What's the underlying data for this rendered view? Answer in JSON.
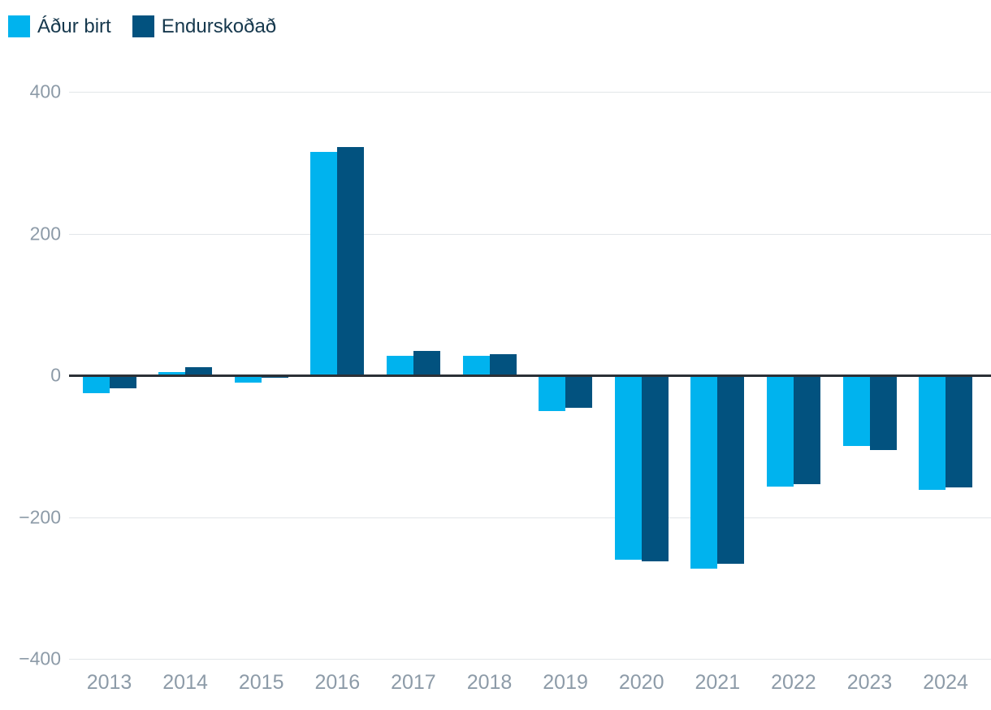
{
  "legend": {
    "items": [
      {
        "label": "Áður birt",
        "color": "#00b3ee"
      },
      {
        "label": "Endurskoðað",
        "color": "#02527f"
      }
    ]
  },
  "chart_data": {
    "type": "bar",
    "title": "",
    "categories": [
      "2013",
      "2014",
      "2015",
      "2016",
      "2017",
      "2018",
      "2019",
      "2020",
      "2021",
      "2022",
      "2023",
      "2024"
    ],
    "series": [
      {
        "name": "Áður birt",
        "color": "#00b3ee",
        "values": [
          -25,
          5,
          -10,
          315,
          27,
          27,
          -50,
          -260,
          -273,
          -157,
          -100,
          -162
        ]
      },
      {
        "name": "Endurskoðað",
        "color": "#02527f",
        "values": [
          -18,
          12,
          -4,
          322,
          34,
          30,
          -46,
          -263,
          -266,
          -154,
          -105,
          -158
        ]
      }
    ],
    "ylim": [
      -400,
      400
    ],
    "yticks": [
      {
        "value": 400,
        "label": "400"
      },
      {
        "value": 200,
        "label": "200"
      },
      {
        "value": 0,
        "label": "0"
      },
      {
        "value": -200,
        "label": "−200"
      },
      {
        "value": -400,
        "label": "−400"
      }
    ],
    "grid": true,
    "legend_position": "top-left"
  },
  "style": {
    "background": "#ffffff",
    "grid_color": "#e2e6e9",
    "zero_line_color": "#2b3036",
    "axis_label_color": "#8d9ba8",
    "legend_text_color": "#16384d"
  }
}
